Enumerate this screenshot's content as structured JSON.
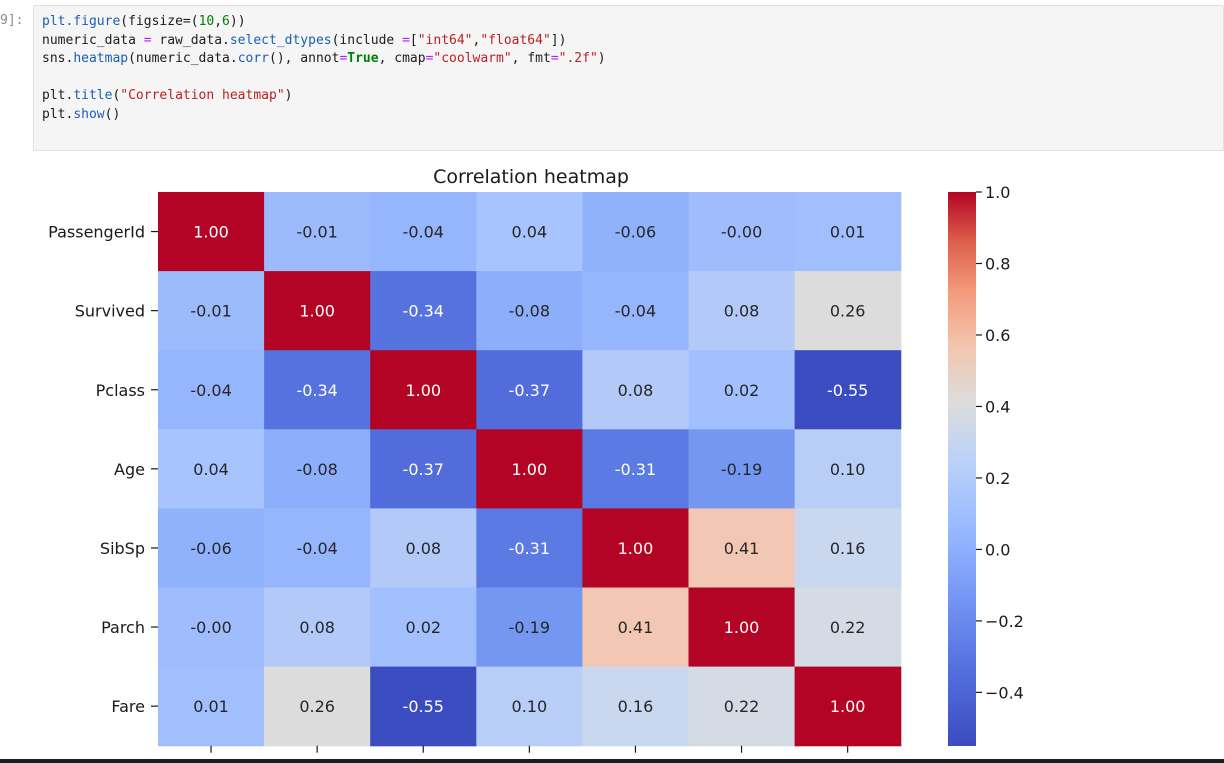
{
  "cell": {
    "prompt": "9]:",
    "code_lines": [
      [
        [
          "fn",
          "plt.figure"
        ],
        [
          "p",
          "(figsize="
        ],
        [
          "p",
          "("
        ],
        [
          "num",
          "10"
        ],
        [
          "p",
          ","
        ],
        [
          "num",
          "6"
        ],
        [
          "p",
          "))"
        ]
      ],
      [
        [
          "p",
          "numeric_data "
        ],
        [
          "op",
          "="
        ],
        [
          "p",
          " raw_data."
        ],
        [
          "fn",
          "select_dtypes"
        ],
        [
          "p",
          "(include "
        ],
        [
          "op",
          "="
        ],
        [
          "p",
          "["
        ],
        [
          "str",
          "\"int64\""
        ],
        [
          "p",
          ","
        ],
        [
          "str",
          "\"float64\""
        ],
        [
          "p",
          "])"
        ]
      ],
      [
        [
          "p",
          "sns."
        ],
        [
          "fn",
          "heatmap"
        ],
        [
          "p",
          "(numeric_data."
        ],
        [
          "fn",
          "corr"
        ],
        [
          "p",
          "(), annot"
        ],
        [
          "op",
          "="
        ],
        [
          "kw",
          "True"
        ],
        [
          "p",
          ", cmap"
        ],
        [
          "op",
          "="
        ],
        [
          "str",
          "\"coolwarm\""
        ],
        [
          "p",
          ", fmt"
        ],
        [
          "op",
          "="
        ],
        [
          "str",
          "\".2f\""
        ],
        [
          "p",
          ")"
        ]
      ],
      [],
      [
        [
          "p",
          "plt."
        ],
        [
          "fn",
          "title"
        ],
        [
          "p",
          "("
        ],
        [
          "str",
          "\"Correlation heatmap\""
        ],
        [
          "p",
          ")"
        ]
      ],
      [
        [
          "p",
          "plt."
        ],
        [
          "fn",
          "show"
        ],
        [
          "p",
          "()"
        ]
      ]
    ]
  },
  "chart_data": {
    "type": "heatmap",
    "title": "Correlation heatmap",
    "rows": [
      "PassengerId",
      "Survived",
      "Pclass",
      "Age",
      "SibSp",
      "Parch",
      "Fare"
    ],
    "columns": [
      "PassengerId",
      "Survived",
      "Pclass",
      "Age",
      "SibSp",
      "Parch",
      "Fare"
    ],
    "values": [
      [
        1.0,
        -0.01,
        -0.04,
        0.04,
        -0.06,
        -0.0,
        0.01
      ],
      [
        -0.01,
        1.0,
        -0.34,
        -0.08,
        -0.04,
        0.08,
        0.26
      ],
      [
        -0.04,
        -0.34,
        1.0,
        -0.37,
        0.08,
        0.02,
        -0.55
      ],
      [
        0.04,
        -0.08,
        -0.37,
        1.0,
        -0.31,
        -0.19,
        0.1
      ],
      [
        -0.06,
        -0.04,
        0.08,
        -0.31,
        1.0,
        0.41,
        0.16
      ],
      [
        -0.0,
        0.08,
        0.02,
        -0.19,
        0.41,
        1.0,
        0.22
      ],
      [
        0.01,
        0.26,
        -0.55,
        0.1,
        0.16,
        0.22,
        1.0
      ]
    ],
    "value_labels": [
      [
        "1.00",
        "-0.01",
        "-0.04",
        "0.04",
        "-0.06",
        "-0.00",
        "0.01"
      ],
      [
        "-0.01",
        "1.00",
        "-0.34",
        "-0.08",
        "-0.04",
        "0.08",
        "0.26"
      ],
      [
        "-0.04",
        "-0.34",
        "1.00",
        "-0.37",
        "0.08",
        "0.02",
        "-0.55"
      ],
      [
        "0.04",
        "-0.08",
        "-0.37",
        "1.00",
        "-0.31",
        "-0.19",
        "0.10"
      ],
      [
        "-0.06",
        "-0.04",
        "0.08",
        "-0.31",
        "1.00",
        "0.41",
        "0.16"
      ],
      [
        "-0.00",
        "0.08",
        "0.02",
        "-0.19",
        "0.41",
        "1.00",
        "0.22"
      ],
      [
        "0.01",
        "0.26",
        "-0.55",
        "0.10",
        "0.16",
        "0.22",
        "1.00"
      ]
    ],
    "colormap": "coolwarm",
    "colorbar": {
      "range": [
        -0.55,
        1.0
      ],
      "ticks": [
        1.0,
        0.8,
        0.6,
        0.4,
        0.2,
        0.0,
        -0.2,
        -0.4
      ],
      "tick_labels": [
        "1.0",
        "0.8",
        "0.6",
        "0.4",
        "0.2",
        "0.0",
        "−0.2",
        "−0.4"
      ]
    },
    "legend": "colorbar-right"
  },
  "colors": {
    "code_bg": "#f5f5f5",
    "keyword": "#008000",
    "string": "#ba2121",
    "function": "#1a5fb4",
    "operator": "#aa22ff"
  }
}
